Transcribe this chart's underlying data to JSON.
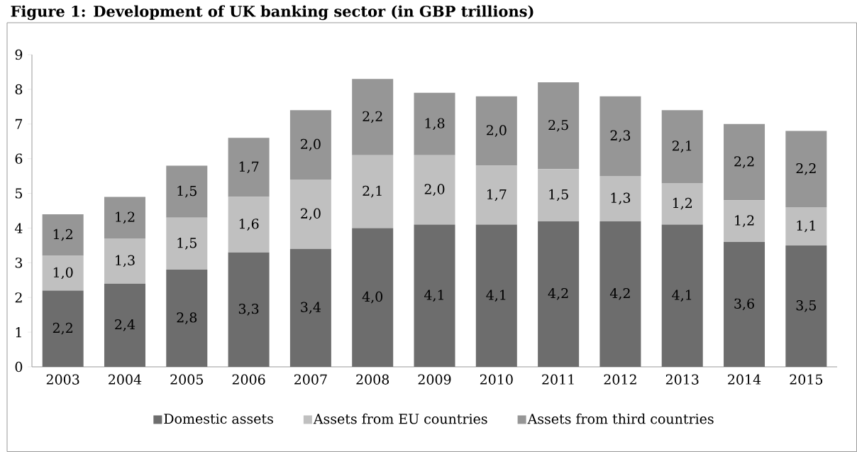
{
  "chart_data": {
    "type": "bar",
    "title": "Figure 1: Development of UK banking sector (in GBP trillions)",
    "categories": [
      "2003",
      "2004",
      "2005",
      "2006",
      "2007",
      "2008",
      "2009",
      "2010",
      "2011",
      "2012",
      "2013",
      "2014",
      "2015"
    ],
    "stacked": true,
    "ylim": [
      0,
      9
    ],
    "yticks": [
      0,
      1,
      2,
      3,
      4,
      5,
      6,
      7,
      8,
      9
    ],
    "grid": false,
    "legend": "bottom",
    "series": [
      {
        "name": "Domestic assets",
        "color": "#6d6d6d",
        "values": [
          2.2,
          2.4,
          2.8,
          3.3,
          3.4,
          4.0,
          4.1,
          4.1,
          4.2,
          4.2,
          4.1,
          3.6,
          3.5
        ],
        "value_labels": [
          "2,2",
          "2,4",
          "2,8",
          "3,3",
          "3,4",
          "4,0",
          "4,1",
          "4,1",
          "4,2",
          "4,2",
          "4,1",
          "3,6",
          "3,5"
        ]
      },
      {
        "name": "Assets from EU countries",
        "color": "#c0c0c0",
        "values": [
          1.0,
          1.3,
          1.5,
          1.6,
          2.0,
          2.1,
          2.0,
          1.7,
          1.5,
          1.3,
          1.2,
          1.2,
          1.1
        ],
        "value_labels": [
          "1,0",
          "1,3",
          "1,5",
          "1,6",
          "2,0",
          "2,1",
          "2,0",
          "1,7",
          "1,5",
          "1,3",
          "1,2",
          "1,2",
          "1,1"
        ]
      },
      {
        "name": "Assets from third countries",
        "color": "#969696",
        "values": [
          1.2,
          1.2,
          1.5,
          1.7,
          2.0,
          2.2,
          1.8,
          2.0,
          2.5,
          2.3,
          2.1,
          2.2,
          2.2
        ],
        "value_labels": [
          "1,2",
          "1,2",
          "1,5",
          "1,7",
          "2,0",
          "2,2",
          "1,8",
          "2,0",
          "2,5",
          "2,3",
          "2,1",
          "2,2",
          "2,2"
        ]
      }
    ]
  }
}
